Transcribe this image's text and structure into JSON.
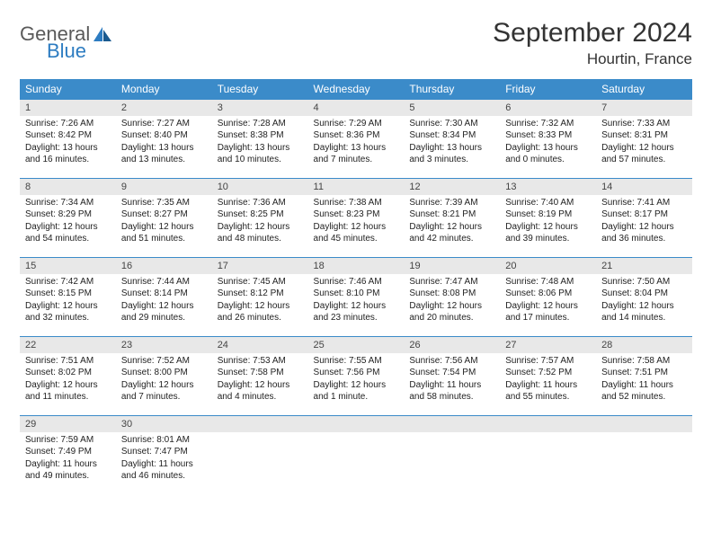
{
  "logo": {
    "general": "General",
    "blue": "Blue"
  },
  "title": "September 2024",
  "location": "Hourtin, France",
  "colors": {
    "header_bg": "#3b8bc9",
    "header_text": "#ffffff",
    "daynum_bg": "#e8e8e8",
    "border": "#3b8bc9",
    "text": "#222222",
    "logo_gray": "#5a5a5a",
    "logo_blue": "#2d7cc1"
  },
  "typography": {
    "title_fontsize": 30,
    "location_fontsize": 17,
    "header_fontsize": 12,
    "daynum_fontsize": 11,
    "body_fontsize": 10
  },
  "weekdays": [
    "Sunday",
    "Monday",
    "Tuesday",
    "Wednesday",
    "Thursday",
    "Friday",
    "Saturday"
  ],
  "weeks": [
    [
      {
        "num": "1",
        "sunrise": "Sunrise: 7:26 AM",
        "sunset": "Sunset: 8:42 PM",
        "day1": "Daylight: 13 hours",
        "day2": "and 16 minutes."
      },
      {
        "num": "2",
        "sunrise": "Sunrise: 7:27 AM",
        "sunset": "Sunset: 8:40 PM",
        "day1": "Daylight: 13 hours",
        "day2": "and 13 minutes."
      },
      {
        "num": "3",
        "sunrise": "Sunrise: 7:28 AM",
        "sunset": "Sunset: 8:38 PM",
        "day1": "Daylight: 13 hours",
        "day2": "and 10 minutes."
      },
      {
        "num": "4",
        "sunrise": "Sunrise: 7:29 AM",
        "sunset": "Sunset: 8:36 PM",
        "day1": "Daylight: 13 hours",
        "day2": "and 7 minutes."
      },
      {
        "num": "5",
        "sunrise": "Sunrise: 7:30 AM",
        "sunset": "Sunset: 8:34 PM",
        "day1": "Daylight: 13 hours",
        "day2": "and 3 minutes."
      },
      {
        "num": "6",
        "sunrise": "Sunrise: 7:32 AM",
        "sunset": "Sunset: 8:33 PM",
        "day1": "Daylight: 13 hours",
        "day2": "and 0 minutes."
      },
      {
        "num": "7",
        "sunrise": "Sunrise: 7:33 AM",
        "sunset": "Sunset: 8:31 PM",
        "day1": "Daylight: 12 hours",
        "day2": "and 57 minutes."
      }
    ],
    [
      {
        "num": "8",
        "sunrise": "Sunrise: 7:34 AM",
        "sunset": "Sunset: 8:29 PM",
        "day1": "Daylight: 12 hours",
        "day2": "and 54 minutes."
      },
      {
        "num": "9",
        "sunrise": "Sunrise: 7:35 AM",
        "sunset": "Sunset: 8:27 PM",
        "day1": "Daylight: 12 hours",
        "day2": "and 51 minutes."
      },
      {
        "num": "10",
        "sunrise": "Sunrise: 7:36 AM",
        "sunset": "Sunset: 8:25 PM",
        "day1": "Daylight: 12 hours",
        "day2": "and 48 minutes."
      },
      {
        "num": "11",
        "sunrise": "Sunrise: 7:38 AM",
        "sunset": "Sunset: 8:23 PM",
        "day1": "Daylight: 12 hours",
        "day2": "and 45 minutes."
      },
      {
        "num": "12",
        "sunrise": "Sunrise: 7:39 AM",
        "sunset": "Sunset: 8:21 PM",
        "day1": "Daylight: 12 hours",
        "day2": "and 42 minutes."
      },
      {
        "num": "13",
        "sunrise": "Sunrise: 7:40 AM",
        "sunset": "Sunset: 8:19 PM",
        "day1": "Daylight: 12 hours",
        "day2": "and 39 minutes."
      },
      {
        "num": "14",
        "sunrise": "Sunrise: 7:41 AM",
        "sunset": "Sunset: 8:17 PM",
        "day1": "Daylight: 12 hours",
        "day2": "and 36 minutes."
      }
    ],
    [
      {
        "num": "15",
        "sunrise": "Sunrise: 7:42 AM",
        "sunset": "Sunset: 8:15 PM",
        "day1": "Daylight: 12 hours",
        "day2": "and 32 minutes."
      },
      {
        "num": "16",
        "sunrise": "Sunrise: 7:44 AM",
        "sunset": "Sunset: 8:14 PM",
        "day1": "Daylight: 12 hours",
        "day2": "and 29 minutes."
      },
      {
        "num": "17",
        "sunrise": "Sunrise: 7:45 AM",
        "sunset": "Sunset: 8:12 PM",
        "day1": "Daylight: 12 hours",
        "day2": "and 26 minutes."
      },
      {
        "num": "18",
        "sunrise": "Sunrise: 7:46 AM",
        "sunset": "Sunset: 8:10 PM",
        "day1": "Daylight: 12 hours",
        "day2": "and 23 minutes."
      },
      {
        "num": "19",
        "sunrise": "Sunrise: 7:47 AM",
        "sunset": "Sunset: 8:08 PM",
        "day1": "Daylight: 12 hours",
        "day2": "and 20 minutes."
      },
      {
        "num": "20",
        "sunrise": "Sunrise: 7:48 AM",
        "sunset": "Sunset: 8:06 PM",
        "day1": "Daylight: 12 hours",
        "day2": "and 17 minutes."
      },
      {
        "num": "21",
        "sunrise": "Sunrise: 7:50 AM",
        "sunset": "Sunset: 8:04 PM",
        "day1": "Daylight: 12 hours",
        "day2": "and 14 minutes."
      }
    ],
    [
      {
        "num": "22",
        "sunrise": "Sunrise: 7:51 AM",
        "sunset": "Sunset: 8:02 PM",
        "day1": "Daylight: 12 hours",
        "day2": "and 11 minutes."
      },
      {
        "num": "23",
        "sunrise": "Sunrise: 7:52 AM",
        "sunset": "Sunset: 8:00 PM",
        "day1": "Daylight: 12 hours",
        "day2": "and 7 minutes."
      },
      {
        "num": "24",
        "sunrise": "Sunrise: 7:53 AM",
        "sunset": "Sunset: 7:58 PM",
        "day1": "Daylight: 12 hours",
        "day2": "and 4 minutes."
      },
      {
        "num": "25",
        "sunrise": "Sunrise: 7:55 AM",
        "sunset": "Sunset: 7:56 PM",
        "day1": "Daylight: 12 hours",
        "day2": "and 1 minute."
      },
      {
        "num": "26",
        "sunrise": "Sunrise: 7:56 AM",
        "sunset": "Sunset: 7:54 PM",
        "day1": "Daylight: 11 hours",
        "day2": "and 58 minutes."
      },
      {
        "num": "27",
        "sunrise": "Sunrise: 7:57 AM",
        "sunset": "Sunset: 7:52 PM",
        "day1": "Daylight: 11 hours",
        "day2": "and 55 minutes."
      },
      {
        "num": "28",
        "sunrise": "Sunrise: 7:58 AM",
        "sunset": "Sunset: 7:51 PM",
        "day1": "Daylight: 11 hours",
        "day2": "and 52 minutes."
      }
    ],
    [
      {
        "num": "29",
        "sunrise": "Sunrise: 7:59 AM",
        "sunset": "Sunset: 7:49 PM",
        "day1": "Daylight: 11 hours",
        "day2": "and 49 minutes."
      },
      {
        "num": "30",
        "sunrise": "Sunrise: 8:01 AM",
        "sunset": "Sunset: 7:47 PM",
        "day1": "Daylight: 11 hours",
        "day2": "and 46 minutes."
      },
      null,
      null,
      null,
      null,
      null
    ]
  ]
}
